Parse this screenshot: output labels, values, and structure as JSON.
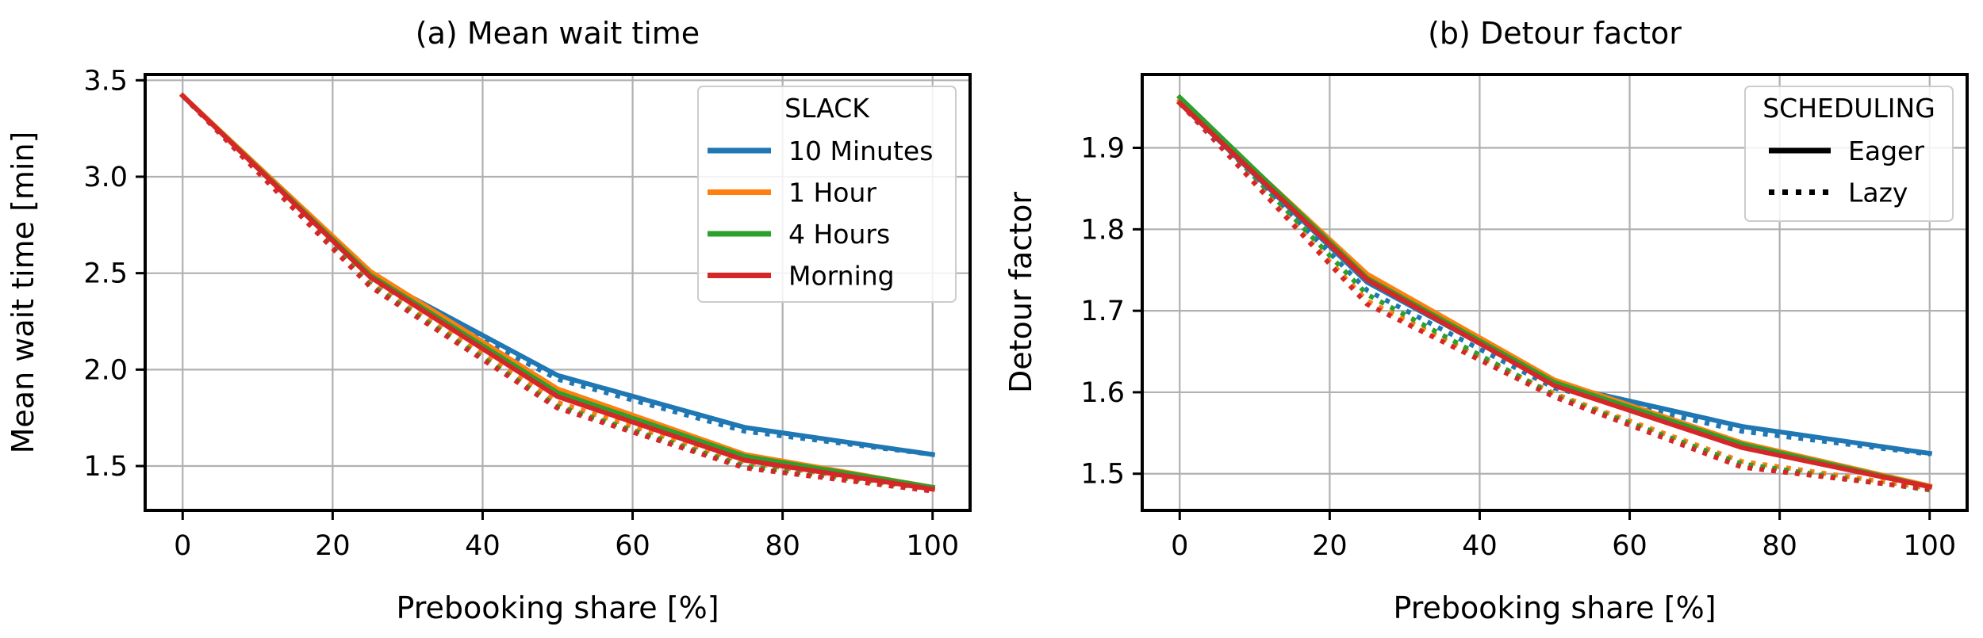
{
  "chart_data": [
    {
      "type": "line",
      "title": "(a) Mean wait time",
      "xlabel": "Prebooking share [%]",
      "ylabel": "Mean wait time [min]",
      "x": [
        0,
        25,
        50,
        75,
        100
      ],
      "xlim": [
        -5,
        105
      ],
      "ylim": [
        1.27,
        3.53
      ],
      "xticks": [
        0,
        20,
        40,
        60,
        80,
        100
      ],
      "yticks": [
        1.5,
        2.0,
        2.5,
        3.0,
        3.5
      ],
      "xtick_labels": [
        "0",
        "20",
        "40",
        "60",
        "80",
        "100"
      ],
      "ytick_labels": [
        "1.5",
        "2.0",
        "2.5",
        "3.0",
        "3.5"
      ],
      "grid": true,
      "legend": {
        "title": "SLACK",
        "position": "top-right",
        "entries": [
          "10 Minutes",
          "1 Hour",
          "4 Hours",
          "Morning"
        ]
      },
      "series": [
        {
          "name": "10 Minutes",
          "style": "solid",
          "color": "#1f77b4",
          "values": [
            3.42,
            2.49,
            1.97,
            1.7,
            1.56
          ]
        },
        {
          "name": "10 Minutes",
          "style": "dotted",
          "color": "#1f77b4",
          "values": [
            3.42,
            2.46,
            1.95,
            1.68,
            1.56
          ]
        },
        {
          "name": "1 Hour",
          "style": "solid",
          "color": "#ff7f0e",
          "values": [
            3.42,
            2.51,
            1.9,
            1.56,
            1.39
          ]
        },
        {
          "name": "1 Hour",
          "style": "dotted",
          "color": "#ff7f0e",
          "values": [
            3.42,
            2.45,
            1.83,
            1.52,
            1.38
          ]
        },
        {
          "name": "4 Hours",
          "style": "solid",
          "color": "#2ca02c",
          "values": [
            3.42,
            2.49,
            1.88,
            1.55,
            1.39
          ]
        },
        {
          "name": "4 Hours",
          "style": "dotted",
          "color": "#2ca02c",
          "values": [
            3.42,
            2.44,
            1.81,
            1.5,
            1.38
          ]
        },
        {
          "name": "Morning",
          "style": "solid",
          "color": "#d62728",
          "values": [
            3.42,
            2.48,
            1.86,
            1.53,
            1.38
          ]
        },
        {
          "name": "Morning",
          "style": "dotted",
          "color": "#d62728",
          "values": [
            3.42,
            2.43,
            1.8,
            1.49,
            1.37
          ]
        }
      ]
    },
    {
      "type": "line",
      "title": "(b) Detour factor",
      "xlabel": "Prebooking share [%]",
      "ylabel": "Detour factor",
      "x": [
        0,
        25,
        50,
        75,
        100
      ],
      "xlim": [
        -5,
        105
      ],
      "ylim": [
        1.455,
        1.99
      ],
      "xticks": [
        0,
        20,
        40,
        60,
        80,
        100
      ],
      "yticks": [
        1.5,
        1.6,
        1.7,
        1.8,
        1.9
      ],
      "xtick_labels": [
        "0",
        "20",
        "40",
        "60",
        "80",
        "100"
      ],
      "ytick_labels": [
        "1.5",
        "1.6",
        "1.7",
        "1.8",
        "1.9"
      ],
      "grid": true,
      "legend": {
        "title": "SCHEDULING",
        "position": "top-right",
        "entries": [
          "Eager",
          "Lazy"
        ]
      },
      "series": [
        {
          "name": "10 Minutes",
          "style": "solid",
          "color": "#1f77b4",
          "values": [
            1.955,
            1.735,
            1.61,
            1.558,
            1.525
          ]
        },
        {
          "name": "10 Minutes",
          "style": "dotted",
          "color": "#1f77b4",
          "values": [
            1.955,
            1.725,
            1.605,
            1.552,
            1.524
          ]
        },
        {
          "name": "1 Hour",
          "style": "solid",
          "color": "#ff7f0e",
          "values": [
            1.958,
            1.745,
            1.615,
            1.538,
            1.485
          ]
        },
        {
          "name": "1 Hour",
          "style": "dotted",
          "color": "#ff7f0e",
          "values": [
            1.955,
            1.712,
            1.598,
            1.515,
            1.482
          ]
        },
        {
          "name": "4 Hours",
          "style": "solid",
          "color": "#2ca02c",
          "values": [
            1.962,
            1.74,
            1.612,
            1.536,
            1.484
          ]
        },
        {
          "name": "4 Hours",
          "style": "dotted",
          "color": "#2ca02c",
          "values": [
            1.96,
            1.72,
            1.596,
            1.512,
            1.48
          ]
        },
        {
          "name": "Morning",
          "style": "solid",
          "color": "#d62728",
          "values": [
            1.955,
            1.738,
            1.608,
            1.532,
            1.484
          ]
        },
        {
          "name": "Morning",
          "style": "dotted",
          "color": "#d62728",
          "values": [
            1.955,
            1.708,
            1.594,
            1.508,
            1.481
          ]
        }
      ]
    }
  ],
  "legend_styles": {
    "Eager": "solid",
    "Lazy": "dotted"
  },
  "colors": {
    "blue": "#1f77b4",
    "orange": "#ff7f0e",
    "green": "#2ca02c",
    "red": "#d62728",
    "grid": "#b0b0b0"
  }
}
